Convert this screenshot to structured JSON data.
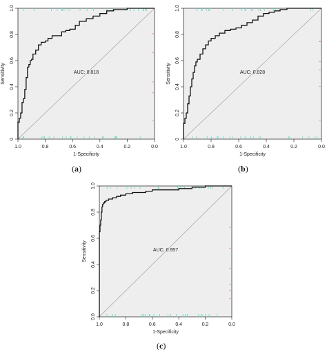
{
  "panels": [
    {
      "tag_open": "(",
      "tag_letter": "a",
      "tag_close": ")"
    },
    {
      "tag_open": "(",
      "tag_letter": "b",
      "tag_close": ")"
    },
    {
      "tag_open": "(",
      "tag_letter": "c",
      "tag_close": ")"
    }
  ],
  "chart_data": [
    {
      "type": "line",
      "xlabel": "1-Specificity",
      "ylabel": "Sensitivity",
      "xlim": [
        1.0,
        0.0
      ],
      "ylim": [
        0.0,
        1.0
      ],
      "x_ticks": [
        "1.0",
        "0.8",
        "0.6",
        "0.4",
        "0.2",
        "0.0"
      ],
      "y_ticks": [
        "0",
        "0.2",
        "0.4",
        "0.6",
        "0.8",
        "1.0"
      ],
      "annotation": "AUC: 0.818",
      "grid": false,
      "series": [
        {
          "x": [
            1.0,
            1.0,
            0.99,
            0.98,
            0.97,
            0.96,
            0.95,
            0.94,
            0.93,
            0.92,
            0.91,
            0.9,
            0.89,
            0.87,
            0.85,
            0.83,
            0.8,
            0.78,
            0.75,
            0.72,
            0.68,
            0.65,
            0.62,
            0.58,
            0.55,
            0.5,
            0.45,
            0.4,
            0.35,
            0.3,
            0.25,
            0.2,
            0.15,
            0.1,
            0.0
          ],
          "y": [
            0.0,
            0.13,
            0.16,
            0.2,
            0.28,
            0.31,
            0.38,
            0.47,
            0.55,
            0.57,
            0.6,
            0.61,
            0.65,
            0.68,
            0.72,
            0.74,
            0.75,
            0.77,
            0.79,
            0.79,
            0.82,
            0.83,
            0.84,
            0.87,
            0.9,
            0.92,
            0.94,
            0.96,
            0.98,
            0.99,
            0.99,
            1.0,
            1.0,
            1.0,
            1.0
          ]
        }
      ]
    },
    {
      "type": "line",
      "xlabel": "1-Specificity",
      "ylabel": "Sensitivity",
      "xlim": [
        1.0,
        0.0
      ],
      "ylim": [
        0.0,
        1.0
      ],
      "x_ticks": [
        "1.0",
        "0.8",
        "0.6",
        "0.4",
        "0.2",
        "0.0"
      ],
      "y_ticks": [
        "0",
        "0.2",
        "0.4",
        "0.6",
        "0.8",
        "1.0"
      ],
      "annotation": "AUC: 0.828",
      "grid": false,
      "series": [
        {
          "x": [
            1.0,
            1.0,
            0.99,
            0.98,
            0.97,
            0.96,
            0.95,
            0.94,
            0.93,
            0.92,
            0.91,
            0.9,
            0.88,
            0.86,
            0.84,
            0.82,
            0.8,
            0.77,
            0.74,
            0.7,
            0.66,
            0.62,
            0.58,
            0.54,
            0.5,
            0.46,
            0.42,
            0.38,
            0.34,
            0.3,
            0.25,
            0.2,
            0.15,
            0.1,
            0.0
          ],
          "y": [
            0.0,
            0.12,
            0.16,
            0.2,
            0.27,
            0.33,
            0.4,
            0.46,
            0.51,
            0.56,
            0.59,
            0.61,
            0.65,
            0.69,
            0.72,
            0.75,
            0.77,
            0.79,
            0.81,
            0.83,
            0.84,
            0.85,
            0.87,
            0.89,
            0.91,
            0.94,
            0.96,
            0.97,
            0.98,
            0.99,
            1.0,
            1.0,
            1.0,
            1.0,
            1.0
          ]
        }
      ]
    },
    {
      "type": "line",
      "xlabel": "1-Specificity",
      "ylabel": "Sensitivity",
      "xlim": [
        1.0,
        0.0
      ],
      "ylim": [
        0.0,
        1.0
      ],
      "x_ticks": [
        "1.0",
        "0.8",
        "0.6",
        "0.4",
        "0.2",
        "0.0"
      ],
      "y_ticks": [
        "0.0",
        "0.2",
        "0.4",
        "0.6",
        "0.8",
        "1.0"
      ],
      "annotation": "AUC: 0.957",
      "grid": false,
      "series": [
        {
          "x": [
            1.0,
            1.0,
            0.995,
            0.99,
            0.985,
            0.98,
            0.975,
            0.97,
            0.96,
            0.95,
            0.93,
            0.9,
            0.87,
            0.84,
            0.8,
            0.75,
            0.7,
            0.65,
            0.6,
            0.5,
            0.4,
            0.3,
            0.2,
            0.1,
            0.0
          ],
          "y": [
            0.0,
            0.65,
            0.7,
            0.74,
            0.8,
            0.84,
            0.86,
            0.87,
            0.88,
            0.89,
            0.9,
            0.91,
            0.92,
            0.93,
            0.94,
            0.95,
            0.95,
            0.96,
            0.97,
            0.97,
            0.98,
            0.99,
            1.0,
            1.0,
            1.0
          ]
        }
      ]
    }
  ]
}
